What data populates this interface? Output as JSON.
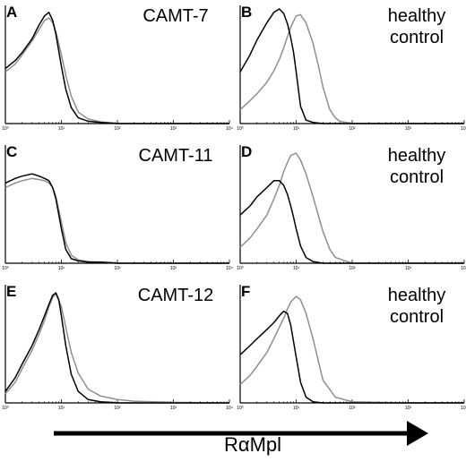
{
  "x_axis_label": "RαMpl",
  "colors": {
    "control_trace": "#000000",
    "antibody_trace": "#8f8f8f",
    "axis": "#000000"
  },
  "chart_data": [
    {
      "panel": "A",
      "type": "line",
      "sample_label": [
        "CAMT-7"
      ],
      "xscale": "log",
      "xlim": [
        1,
        10000
      ],
      "xticks": [
        "10⁰",
        "10¹",
        "10²",
        "10³",
        "10⁴"
      ],
      "series": [
        {
          "x": [
            1,
            1.5,
            2,
            3,
            4,
            5,
            6,
            7,
            8,
            10,
            12,
            15,
            20,
            30,
            50,
            100,
            1000,
            10000
          ],
          "values": [
            0.48,
            0.55,
            0.62,
            0.74,
            0.86,
            0.94,
            0.97,
            0.9,
            0.78,
            0.5,
            0.3,
            0.14,
            0.05,
            0.02,
            0.01,
            0,
            0,
            0
          ]
        },
        {
          "x": [
            1,
            1.5,
            2,
            3,
            4,
            5,
            6,
            7,
            8,
            10,
            12,
            15,
            20,
            30,
            50,
            100,
            1000,
            10000
          ],
          "values": [
            0.45,
            0.52,
            0.6,
            0.72,
            0.82,
            0.9,
            0.92,
            0.88,
            0.8,
            0.6,
            0.42,
            0.24,
            0.1,
            0.04,
            0.015,
            0,
            0,
            0
          ]
        }
      ]
    },
    {
      "panel": "B",
      "type": "line",
      "sample_label": [
        "healthy",
        "control"
      ],
      "xscale": "log",
      "xlim": [
        1,
        10000
      ],
      "xticks": [
        "10⁰",
        "10¹",
        "10²",
        "10³",
        "10⁴"
      ],
      "series": [
        {
          "x": [
            1,
            1.5,
            2,
            3,
            4,
            5,
            6,
            7,
            8,
            9,
            10,
            12,
            15,
            20,
            30,
            50,
            100,
            1000,
            10000
          ],
          "values": [
            0.45,
            0.6,
            0.73,
            0.88,
            0.97,
            1,
            0.96,
            0.87,
            0.75,
            0.62,
            0.45,
            0.15,
            0.03,
            0.01,
            0,
            0,
            0,
            0,
            0
          ]
        },
        {
          "x": [
            1,
            1.5,
            2,
            3,
            4,
            5,
            6,
            7,
            8,
            10,
            12,
            15,
            20,
            25,
            30,
            40,
            50,
            60,
            100,
            1000,
            10000
          ],
          "values": [
            0.12,
            0.2,
            0.26,
            0.36,
            0.46,
            0.56,
            0.66,
            0.76,
            0.84,
            0.94,
            0.95,
            0.88,
            0.7,
            0.5,
            0.32,
            0.12,
            0.05,
            0.02,
            0,
            0,
            0
          ]
        }
      ]
    },
    {
      "panel": "C",
      "type": "line",
      "sample_label": [
        "CAMT-11"
      ],
      "xscale": "log",
      "xlim": [
        1,
        10000
      ],
      "xticks": [
        "10⁰",
        "10¹",
        "10²",
        "10³",
        "10⁴"
      ],
      "series": [
        {
          "x": [
            1,
            1.5,
            2,
            3,
            4,
            5,
            6,
            7,
            8,
            10,
            12,
            15,
            20,
            30,
            50,
            100,
            1000,
            10000
          ],
          "values": [
            0.7,
            0.74,
            0.76,
            0.78,
            0.76,
            0.74,
            0.72,
            0.66,
            0.56,
            0.3,
            0.12,
            0.04,
            0.02,
            0.01,
            0.01,
            0,
            0,
            0
          ]
        },
        {
          "x": [
            1,
            1.5,
            2,
            3,
            4,
            5,
            6,
            7,
            8,
            10,
            12,
            15,
            20,
            30,
            50,
            100,
            1000,
            10000
          ],
          "values": [
            0.66,
            0.7,
            0.72,
            0.74,
            0.73,
            0.72,
            0.7,
            0.66,
            0.58,
            0.36,
            0.18,
            0.07,
            0.03,
            0.015,
            0.01,
            0,
            0,
            0
          ]
        }
      ]
    },
    {
      "panel": "D",
      "type": "line",
      "sample_label": [
        "healthy",
        "control"
      ],
      "xscale": "log",
      "xlim": [
        1,
        10000
      ],
      "xticks": [
        "10⁰",
        "10¹",
        "10²",
        "10³",
        "10⁴"
      ],
      "series": [
        {
          "x": [
            1,
            1.5,
            2,
            3,
            4,
            5,
            6,
            7,
            8,
            9,
            10,
            12,
            15,
            20,
            30,
            100,
            1000,
            10000
          ],
          "values": [
            0.42,
            0.5,
            0.58,
            0.66,
            0.72,
            0.72,
            0.68,
            0.6,
            0.5,
            0.4,
            0.3,
            0.15,
            0.05,
            0.015,
            0,
            0,
            0,
            0
          ]
        },
        {
          "x": [
            1,
            1.5,
            2,
            3,
            4,
            5,
            6,
            7,
            8,
            10,
            12,
            15,
            20,
            30,
            40,
            50,
            100,
            1000,
            10000
          ],
          "values": [
            0.14,
            0.22,
            0.3,
            0.42,
            0.56,
            0.68,
            0.8,
            0.88,
            0.94,
            0.96,
            0.9,
            0.78,
            0.58,
            0.28,
            0.12,
            0.05,
            0,
            0,
            0
          ]
        }
      ]
    },
    {
      "panel": "E",
      "type": "line",
      "sample_label": [
        "CAMT-12"
      ],
      "xscale": "log",
      "xlim": [
        1,
        10000
      ],
      "xticks": [
        "10⁰",
        "10¹",
        "10²",
        "10³",
        "10⁴"
      ],
      "series": [
        {
          "x": [
            1,
            1.5,
            2,
            3,
            4,
            5,
            6,
            7,
            8,
            9,
            10,
            12,
            15,
            20,
            30,
            50,
            100,
            1000,
            10000
          ],
          "values": [
            0.1,
            0.22,
            0.34,
            0.5,
            0.64,
            0.76,
            0.86,
            0.94,
            0.96,
            0.9,
            0.76,
            0.5,
            0.25,
            0.1,
            0.03,
            0.01,
            0,
            0,
            0
          ]
        },
        {
          "x": [
            1,
            1.5,
            2,
            3,
            4,
            5,
            6,
            7,
            8,
            10,
            12,
            15,
            20,
            30,
            50,
            100,
            200,
            1000,
            10000
          ],
          "values": [
            0.08,
            0.18,
            0.3,
            0.46,
            0.6,
            0.72,
            0.84,
            0.92,
            0.95,
            0.84,
            0.66,
            0.44,
            0.26,
            0.12,
            0.06,
            0.03,
            0.015,
            0.005,
            0
          ]
        }
      ]
    },
    {
      "panel": "F",
      "type": "line",
      "sample_label": [
        "healthy",
        "control"
      ],
      "xscale": "log",
      "xlim": [
        1,
        10000
      ],
      "xticks": [
        "10⁰",
        "10¹",
        "10²",
        "10³",
        "10⁴"
      ],
      "series": [
        {
          "x": [
            1,
            1.5,
            2,
            3,
            4,
            5,
            6,
            7,
            8,
            10,
            12,
            15,
            20,
            30,
            100,
            1000,
            10000
          ],
          "values": [
            0.42,
            0.5,
            0.56,
            0.64,
            0.7,
            0.76,
            0.8,
            0.78,
            0.68,
            0.4,
            0.18,
            0.05,
            0.01,
            0,
            0,
            0,
            0
          ]
        },
        {
          "x": [
            1,
            1.5,
            2,
            3,
            4,
            5,
            6,
            7,
            8,
            10,
            12,
            15,
            20,
            25,
            30,
            50,
            100,
            1000,
            10000
          ],
          "values": [
            0.16,
            0.24,
            0.32,
            0.44,
            0.56,
            0.66,
            0.74,
            0.82,
            0.88,
            0.93,
            0.9,
            0.78,
            0.56,
            0.36,
            0.2,
            0.05,
            0.01,
            0,
            0
          ]
        }
      ]
    }
  ]
}
